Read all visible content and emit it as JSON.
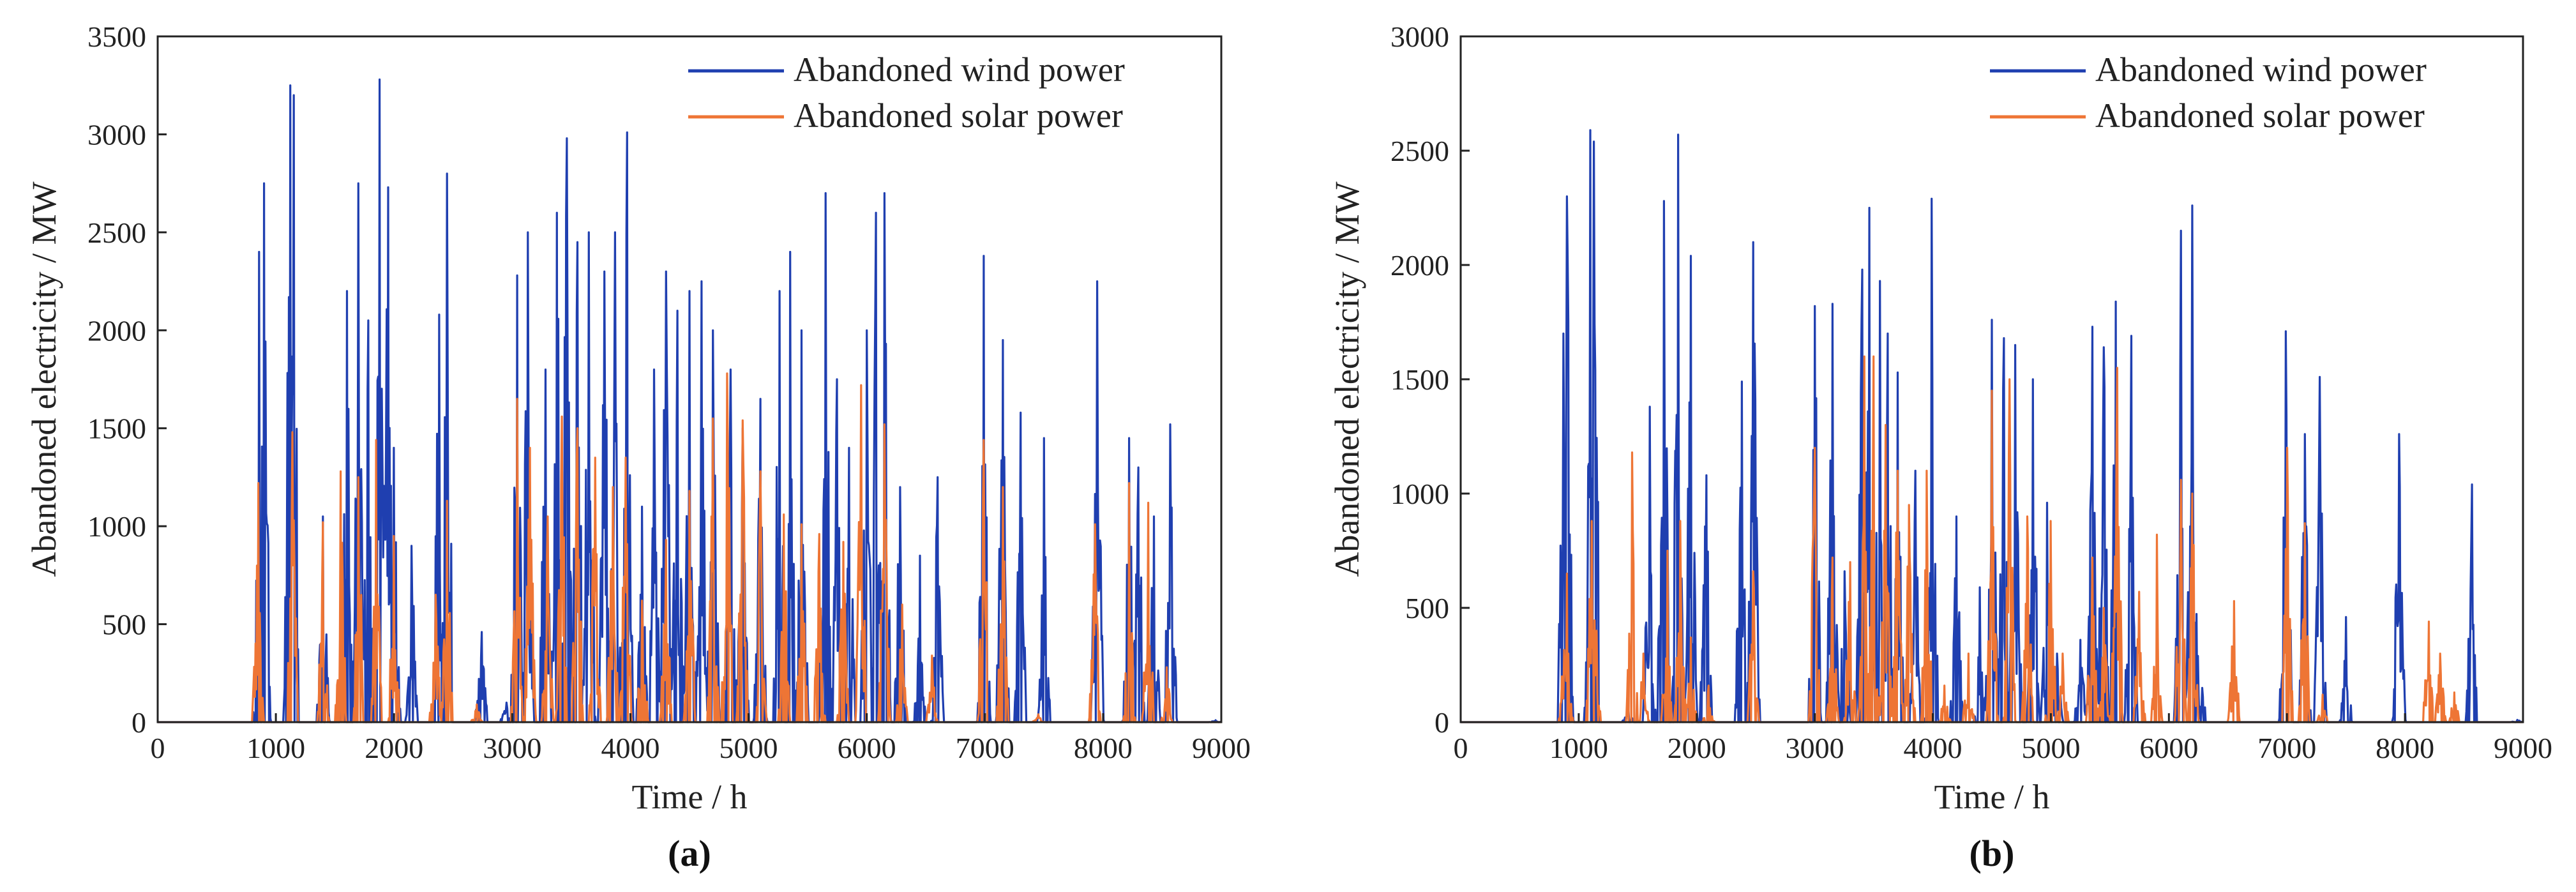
{
  "colors": {
    "wind": "#1f3fb0",
    "solar": "#ee7535",
    "axis": "#222222"
  },
  "chart_data": [
    {
      "type": "line",
      "panel_label": "(a)",
      "xlabel": "Time / h",
      "ylabel": "Abandoned electricity / MW",
      "xlim": [
        0,
        9000
      ],
      "ylim": [
        0,
        3500
      ],
      "xticks": [
        "0",
        "1000",
        "2000",
        "3000",
        "4000",
        "5000",
        "6000",
        "7000",
        "8000",
        "9000"
      ],
      "yticks": [
        "0",
        "500",
        "1000",
        "1500",
        "2000",
        "2500",
        "3000",
        "3500"
      ],
      "legend": [
        "Abandoned wind power",
        "Abandoned solar power"
      ],
      "series": [
        {
          "name": "Abandoned wind power",
          "peaks": [
            [
              860,
              2400
            ],
            [
              900,
              2750
            ],
            [
              1120,
              3250
            ],
            [
              1150,
              3200
            ],
            [
              1400,
              1050
            ],
            [
              1600,
              2200
            ],
            [
              1700,
              2750
            ],
            [
              1780,
              2050
            ],
            [
              1880,
              3280
            ],
            [
              1950,
              2730
            ],
            [
              2000,
              1400
            ],
            [
              2150,
              900
            ],
            [
              2380,
              2080
            ],
            [
              2450,
              2800
            ],
            [
              2740,
              460
            ],
            [
              2950,
              100
            ],
            [
              3040,
              2280
            ],
            [
              3130,
              2500
            ],
            [
              3280,
              1800
            ],
            [
              3380,
              2600
            ],
            [
              3460,
              2980
            ],
            [
              3550,
              2450
            ],
            [
              3650,
              2500
            ],
            [
              3780,
              2300
            ],
            [
              3870,
              2500
            ],
            [
              3970,
              3010
            ],
            [
              4100,
              1100
            ],
            [
              4200,
              1800
            ],
            [
              4300,
              2300
            ],
            [
              4400,
              2100
            ],
            [
              4500,
              2200
            ],
            [
              4600,
              2250
            ],
            [
              4700,
              2000
            ],
            [
              4850,
              1800
            ],
            [
              4950,
              1500
            ],
            [
              5100,
              1650
            ],
            [
              5260,
              2200
            ],
            [
              5350,
              2400
            ],
            [
              5450,
              2000
            ],
            [
              5650,
              2700
            ],
            [
              5750,
              1750
            ],
            [
              5850,
              1400
            ],
            [
              6000,
              2000
            ],
            [
              6080,
              2600
            ],
            [
              6150,
              2700
            ],
            [
              6280,
              1200
            ],
            [
              6450,
              850
            ],
            [
              6600,
              1250
            ],
            [
              6990,
              2380
            ],
            [
              7150,
              1950
            ],
            [
              7300,
              1580
            ],
            [
              7500,
              1450
            ],
            [
              7950,
              2250
            ],
            [
              8220,
              1450
            ],
            [
              8300,
              1300
            ],
            [
              8430,
              1050
            ],
            [
              8570,
              1520
            ],
            [
              8950,
              10
            ]
          ]
        },
        {
          "name": "Abandoned solar power",
          "peaks": [
            [
              850,
              1220
            ],
            [
              1140,
              1480
            ],
            [
              1400,
              1020
            ],
            [
              1550,
              1280
            ],
            [
              1700,
              1250
            ],
            [
              1850,
              1440
            ],
            [
              2000,
              950
            ],
            [
              2350,
              650
            ],
            [
              2450,
              1130
            ],
            [
              2700,
              90
            ],
            [
              3040,
              1650
            ],
            [
              3150,
              1400
            ],
            [
              3300,
              1050
            ],
            [
              3420,
              1560
            ],
            [
              3550,
              1500
            ],
            [
              3700,
              1350
            ],
            [
              3850,
              1200
            ],
            [
              3960,
              1350
            ],
            [
              4100,
              620
            ],
            [
              4300,
              930
            ],
            [
              4500,
              1180
            ],
            [
              4700,
              1550
            ],
            [
              4820,
              1780
            ],
            [
              4950,
              1540
            ],
            [
              5100,
              1280
            ],
            [
              5300,
              1060
            ],
            [
              5450,
              1010
            ],
            [
              5600,
              960
            ],
            [
              5800,
              920
            ],
            [
              5950,
              1720
            ],
            [
              6150,
              1520
            ],
            [
              6300,
              600
            ],
            [
              6550,
              340
            ],
            [
              6990,
              1440
            ],
            [
              7150,
              1200
            ],
            [
              7450,
              40
            ],
            [
              7930,
              1010
            ],
            [
              8220,
              1220
            ],
            [
              8380,
              1120
            ],
            [
              8540,
              280
            ]
          ]
        }
      ]
    },
    {
      "type": "line",
      "panel_label": "(b)",
      "xlabel": "Time / h",
      "ylabel": "Abandoned electricity / MW",
      "xlim": [
        0,
        9000
      ],
      "ylim": [
        0,
        3000
      ],
      "xticks": [
        "0",
        "1000",
        "2000",
        "3000",
        "4000",
        "5000",
        "6000",
        "7000",
        "8000",
        "9000"
      ],
      "yticks": [
        "0",
        "500",
        "1000",
        "1500",
        "2000",
        "2500",
        "3000"
      ],
      "legend": [
        "Abandoned wind power",
        "Abandoned solar power"
      ],
      "series": [
        {
          "name": "Abandoned wind power",
          "peaks": [
            [
              870,
              1700
            ],
            [
              900,
              2300
            ],
            [
              1100,
              2590
            ],
            [
              1130,
              2540
            ],
            [
              1420,
              50
            ],
            [
              1600,
              1380
            ],
            [
              1720,
              2280
            ],
            [
              1840,
              2570
            ],
            [
              1950,
              2040
            ],
            [
              2080,
              1080
            ],
            [
              2380,
              1490
            ],
            [
              2480,
              2100
            ],
            [
              3000,
              1820
            ],
            [
              3150,
              1830
            ],
            [
              3250,
              660
            ],
            [
              3400,
              1980
            ],
            [
              3460,
              2250
            ],
            [
              3550,
              1930
            ],
            [
              3620,
              1700
            ],
            [
              3700,
              1530
            ],
            [
              3850,
              1100
            ],
            [
              3990,
              2290
            ],
            [
              4200,
              900
            ],
            [
              4400,
              590
            ],
            [
              4500,
              1760
            ],
            [
              4600,
              1680
            ],
            [
              4700,
              1650
            ],
            [
              4850,
              1500
            ],
            [
              4970,
              960
            ],
            [
              5050,
              300
            ],
            [
              5250,
              360
            ],
            [
              5350,
              1730
            ],
            [
              5450,
              1640
            ],
            [
              5550,
              1840
            ],
            [
              5680,
              1690
            ],
            [
              6100,
              2150
            ],
            [
              6200,
              2260
            ],
            [
              6280,
              150
            ],
            [
              6990,
              1710
            ],
            [
              7150,
              1260
            ],
            [
              7280,
              1510
            ],
            [
              7500,
              460
            ],
            [
              7950,
              1260
            ],
            [
              8570,
              1040
            ],
            [
              8950,
              10
            ]
          ]
        },
        {
          "name": "Abandoned solar power",
          "peaks": [
            [
              860,
              200
            ],
            [
              900,
              650
            ],
            [
              1110,
              880
            ],
            [
              1150,
              400
            ],
            [
              1450,
              1180
            ],
            [
              1550,
              300
            ],
            [
              1750,
              750
            ],
            [
              1860,
              880
            ],
            [
              1950,
              370
            ],
            [
              2100,
              160
            ],
            [
              2480,
              660
            ],
            [
              3000,
              1200
            ],
            [
              3150,
              720
            ],
            [
              3300,
              700
            ],
            [
              3420,
              1600
            ],
            [
              3500,
              1600
            ],
            [
              3600,
              1300
            ],
            [
              3700,
              1100
            ],
            [
              3800,
              950
            ],
            [
              3950,
              1100
            ],
            [
              4100,
              160
            ],
            [
              4300,
              300
            ],
            [
              4500,
              1450
            ],
            [
              4650,
              1500
            ],
            [
              4800,
              900
            ],
            [
              5000,
              880
            ],
            [
              5100,
              300
            ],
            [
              5350,
              720
            ],
            [
              5450,
              500
            ],
            [
              5560,
              1550
            ],
            [
              5750,
              570
            ],
            [
              5900,
              820
            ],
            [
              6100,
              1060
            ],
            [
              6200,
              1000
            ],
            [
              6550,
              530
            ],
            [
              7000,
              1200
            ],
            [
              7150,
              870
            ],
            [
              7300,
              120
            ],
            [
              8200,
              440
            ],
            [
              8300,
              300
            ],
            [
              8420,
              130
            ]
          ]
        }
      ]
    }
  ]
}
